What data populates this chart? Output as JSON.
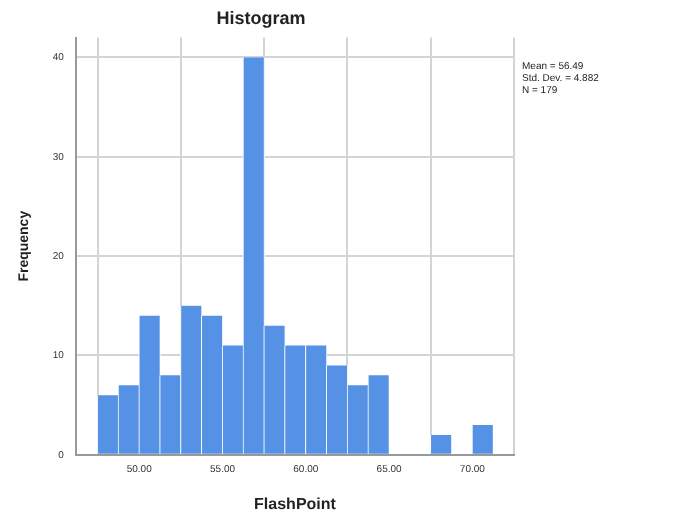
{
  "chart_data": {
    "type": "histogram",
    "title": "Histogram",
    "xlabel": "FlashPoint",
    "ylabel": "Frequency",
    "bins": [
      47.5,
      48.75,
      50,
      51.25,
      52.5,
      53.75,
      55,
      56.25,
      57.5,
      58.75,
      60,
      61.25,
      62.5,
      63.75,
      65,
      66.25,
      67.5,
      68.75,
      70,
      71.25
    ],
    "values": [
      6,
      7,
      14,
      8,
      15,
      14,
      11,
      40,
      13,
      11,
      11,
      9,
      7,
      8,
      0,
      0,
      2,
      0,
      3
    ],
    "color": "#5591e4",
    "xlim": [
      46.2,
      72.5
    ],
    "xticks": [
      {
        "value": 50,
        "label": "50.00"
      },
      {
        "value": 55,
        "label": "55.00"
      },
      {
        "value": 60,
        "label": "60.00"
      },
      {
        "value": 65,
        "label": "65.00"
      },
      {
        "value": 70,
        "label": "70.00"
      }
    ],
    "ylim": [
      0,
      42
    ],
    "yticks": [
      0,
      10,
      20,
      30,
      40
    ],
    "grid": true,
    "annotations": [
      "Mean = 56.49",
      "Std. Dev. = 4.882",
      "N = 179"
    ]
  }
}
